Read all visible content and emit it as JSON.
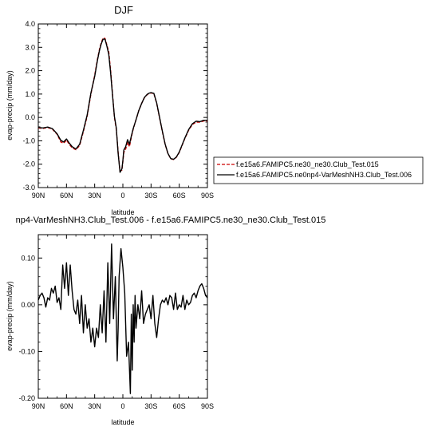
{
  "chart_data": [
    {
      "type": "line",
      "title": "DJF",
      "xlabel": "latitude",
      "ylabel": "evap-precip (mm/day)",
      "xlim": [
        90,
        -90
      ],
      "ylim": [
        -3.0,
        4.0
      ],
      "x_ticks": [
        90,
        60,
        30,
        0,
        -30,
        -60,
        -90
      ],
      "x_tick_labels": [
        "90N",
        "60N",
        "30N",
        "0",
        "30S",
        "60S",
        "90S"
      ],
      "y_ticks": [
        -3.0,
        -2.0,
        -1.0,
        0.0,
        1.0,
        2.0,
        3.0,
        4.0
      ],
      "y_tick_labels": [
        "-3.0",
        "-2.0",
        "-1.0",
        "0.0",
        "1.0",
        "2.0",
        "3.0",
        "4.0"
      ],
      "grid": false,
      "legend": "outside-right",
      "series": [
        {
          "name": "f.e15a6.FAMIPC5.ne30_ne30.Club_Test.015",
          "color": "#cc0000",
          "dash": "dashed",
          "x": [
            90,
            85,
            80,
            75,
            70,
            66,
            63,
            60,
            57,
            54,
            50,
            46,
            42,
            38,
            34,
            30,
            27,
            25,
            23,
            21,
            19,
            17,
            15,
            13,
            11,
            9,
            7,
            5,
            3,
            1,
            0,
            -1,
            -3,
            -5,
            -7,
            -9,
            -11,
            -14,
            -17,
            -20,
            -23,
            -26,
            -28,
            -30,
            -33,
            -36,
            -39,
            -42,
            -45,
            -48,
            -51,
            -54,
            -57,
            -60,
            -63,
            -66,
            -70,
            -74,
            -78,
            -82,
            -86,
            -90
          ],
          "y": [
            -0.45,
            -0.47,
            -0.43,
            -0.5,
            -0.72,
            -1.05,
            -1.1,
            -0.97,
            -1.15,
            -1.3,
            -1.38,
            -1.2,
            -0.6,
            0.05,
            1.0,
            1.8,
            2.5,
            2.9,
            3.2,
            3.4,
            3.38,
            3.1,
            2.8,
            2.0,
            1.0,
            0.0,
            -0.5,
            -1.5,
            -2.3,
            -2.25,
            -1.9,
            -1.5,
            -1.35,
            -1.05,
            -1.25,
            -0.85,
            -0.5,
            -0.1,
            0.3,
            0.6,
            0.85,
            0.98,
            1.03,
            1.05,
            1.02,
            0.6,
            0.0,
            -0.6,
            -1.15,
            -1.55,
            -1.77,
            -1.8,
            -1.7,
            -1.5,
            -1.2,
            -0.9,
            -0.55,
            -0.3,
            -0.2,
            -0.2,
            -0.15,
            -0.15
          ]
        },
        {
          "name": "f.e15a6.FAMIPC5.ne0np4-VarMeshNH3.Club_Test.006",
          "color": "#000000",
          "dash": "solid",
          "x": [
            90,
            85,
            80,
            75,
            70,
            66,
            63,
            60,
            57,
            54,
            50,
            46,
            42,
            38,
            34,
            30,
            27,
            25,
            23,
            21,
            19,
            17,
            15,
            13,
            11,
            9,
            7,
            5,
            3,
            1,
            0,
            -1,
            -3,
            -5,
            -7,
            -9,
            -11,
            -14,
            -17,
            -20,
            -23,
            -26,
            -28,
            -30,
            -33,
            -36,
            -39,
            -42,
            -45,
            -48,
            -51,
            -54,
            -57,
            -60,
            -63,
            -66,
            -70,
            -74,
            -78,
            -82,
            -86,
            -90
          ],
          "y": [
            -0.43,
            -0.45,
            -0.41,
            -0.48,
            -0.7,
            -0.98,
            -1.05,
            -0.92,
            -1.1,
            -1.25,
            -1.35,
            -1.15,
            -0.55,
            0.1,
            1.05,
            1.75,
            2.45,
            2.85,
            3.15,
            3.35,
            3.35,
            3.05,
            2.7,
            1.9,
            0.95,
            0.05,
            -0.45,
            -1.55,
            -2.35,
            -2.2,
            -1.85,
            -1.4,
            -1.25,
            -0.95,
            -1.15,
            -0.8,
            -0.48,
            -0.1,
            0.3,
            0.6,
            0.86,
            0.99,
            1.04,
            1.06,
            1.03,
            0.62,
            0.02,
            -0.58,
            -1.14,
            -1.54,
            -1.76,
            -1.79,
            -1.69,
            -1.48,
            -1.18,
            -0.88,
            -0.52,
            -0.27,
            -0.16,
            -0.18,
            -0.12,
            -0.12
          ]
        }
      ]
    },
    {
      "type": "line",
      "title": "np4-VarMeshNH3.Club_Test.006 - f.e15a6.FAMIPC5.ne30_ne30.Club_Test.015",
      "xlabel": "latitude",
      "ylabel": "evap-precip (mm/day)",
      "xlim": [
        90,
        -90
      ],
      "ylim": [
        -0.2,
        0.15
      ],
      "x_ticks": [
        90,
        60,
        30,
        0,
        -30,
        -60,
        -90
      ],
      "x_tick_labels": [
        "90N",
        "60N",
        "30N",
        "0",
        "30S",
        "60S",
        "90S"
      ],
      "y_ticks": [
        -0.2,
        -0.1,
        0.0,
        0.1
      ],
      "y_tick_labels": [
        "-0.20",
        "-0.10",
        "0.00",
        "0.10"
      ],
      "grid": false,
      "series": [
        {
          "color": "#000000",
          "dash": "solid",
          "x": [
            90,
            88,
            86,
            84,
            82,
            80,
            78,
            76,
            74,
            72,
            70,
            68,
            66,
            64,
            62,
            60,
            58,
            56,
            54,
            52,
            50,
            48,
            46,
            44,
            42,
            40,
            38,
            36,
            34,
            32,
            30,
            28,
            26,
            24,
            22,
            20,
            18,
            16,
            14,
            12,
            10,
            8,
            6,
            5,
            4,
            2,
            0,
            -2,
            -4,
            -6,
            -8,
            -9,
            -10,
            -11,
            -12,
            -13,
            -14,
            -16,
            -18,
            -20,
            -22,
            -24,
            -26,
            -28,
            -30,
            -32,
            -34,
            -36,
            -38,
            -40,
            -42,
            -44,
            -46,
            -48,
            -50,
            -52,
            -54,
            -56,
            -58,
            -60,
            -62,
            -64,
            -66,
            -68,
            -70,
            -72,
            -74,
            -76,
            -78,
            -80,
            -82,
            -84,
            -86,
            -88,
            -90
          ],
          "y": [
            0.01,
            0.02,
            0.025,
            0.015,
            -0.005,
            0.015,
            0.01,
            0.035,
            0.025,
            0.04,
            0.005,
            0.015,
            -0.01,
            0.085,
            0.035,
            0.09,
            0.02,
            0.085,
            0.03,
            -0.01,
            -0.02,
            0.01,
            -0.04,
            0.02,
            -0.06,
            0.0,
            -0.05,
            -0.03,
            -0.08,
            -0.05,
            -0.09,
            -0.05,
            -0.07,
            0.0,
            -0.06,
            0.03,
            -0.08,
            0.09,
            -0.04,
            0.13,
            -0.03,
            0.06,
            -0.12,
            -0.05,
            0.06,
            0.12,
            0.08,
            0.025,
            -0.11,
            -0.08,
            -0.19,
            -0.02,
            -0.14,
            0.0,
            -0.08,
            0.02,
            -0.05,
            0.0,
            -0.03,
            0.03,
            -0.04,
            -0.02,
            -0.01,
            0.0,
            -0.03,
            0.02,
            -0.04,
            -0.07,
            -0.03,
            0.0,
            0.01,
            0.005,
            0.015,
            0.0,
            0.02,
            0.015,
            -0.01,
            0.025,
            -0.01,
            0.0,
            -0.005,
            0.02,
            -0.01,
            0.01,
            0.0,
            0.005,
            0.02,
            0.025,
            0.015,
            0.03,
            0.04,
            0.045,
            0.035,
            0.02,
            0.015
          ]
        }
      ]
    }
  ]
}
